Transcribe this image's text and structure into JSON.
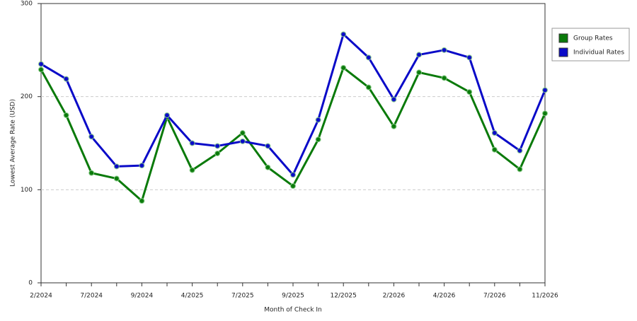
{
  "chart_data": {
    "type": "line",
    "x_label": "Month of Check In",
    "y_label": "Lowest Average Rate (USD)",
    "categories": [
      "2/2024",
      null,
      "7/2024",
      null,
      "9/2024",
      null,
      "4/2025",
      null,
      "7/2025",
      null,
      "9/2025",
      null,
      "12/2025",
      null,
      "2/2026",
      null,
      "4/2026",
      null,
      "7/2026",
      null,
      "11/2026"
    ],
    "series": [
      {
        "name": "Group Rates",
        "color": "#0a7a0a",
        "values": [
          229,
          180,
          118,
          112,
          88,
          178,
          121,
          139,
          161,
          124,
          104,
          154,
          231,
          210,
          168,
          226,
          220,
          205,
          143,
          122,
          182
        ]
      },
      {
        "name": "Individual Rates",
        "color": "#0a0ac8",
        "values": [
          235,
          219,
          157,
          125,
          126,
          180,
          150,
          147,
          152,
          147,
          116,
          175,
          267,
          242,
          197,
          245,
          250,
          242,
          161,
          142,
          207
        ]
      }
    ],
    "ylim": [
      0,
      300
    ],
    "yticks": [
      0,
      100,
      200,
      300
    ],
    "grid": true,
    "legend": "right"
  }
}
